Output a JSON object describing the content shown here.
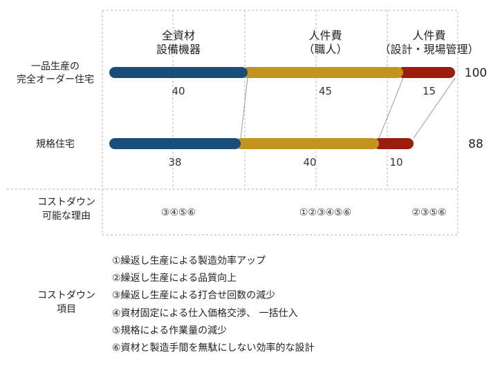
{
  "chart_data": {
    "type": "bar",
    "orientation": "horizontal",
    "stacked": true,
    "colors": {
      "materials": "#194e7a",
      "labor": "#c39320",
      "design": "#9b1d0e"
    },
    "series": [
      {
        "name": "全資材 設備機器",
        "name_lines": [
          "全資材",
          "設備機器"
        ],
        "color": "#194e7a"
      },
      {
        "name": "人件費 （職人）",
        "name_lines": [
          "人件費",
          "（職人）"
        ],
        "color": "#c39320"
      },
      {
        "name": "人件費 （設計・現場管理）",
        "name_lines": [
          "人件費",
          "（設計・現場管理）"
        ],
        "color": "#9b1d0e"
      }
    ],
    "rows": [
      {
        "label_lines": [
          "一品生産の",
          "完全オーダー住宅"
        ],
        "values": [
          40,
          45,
          15
        ],
        "total": "100"
      },
      {
        "label_lines": [
          "規格住宅"
        ],
        "values": [
          38,
          40,
          10
        ],
        "total": "88"
      }
    ],
    "xlim": [
      0,
      100
    ],
    "reason_row": {
      "label_lines": [
        "コストダウン",
        "可能な理由"
      ],
      "values": [
        "③④⑤⑥",
        "①②③④⑤⑥",
        "②③⑤⑥"
      ]
    }
  },
  "legend": {
    "title_lines": [
      "コストダウン",
      "項目"
    ],
    "items": [
      "①繰返し生産による製造効率アップ",
      "②繰返し生産による品質向上",
      "③繰返し生産による打合せ回数の減少",
      "④資材固定による仕入価格交渉、 一括仕入",
      "⑤規格による作業量の減少",
      "⑥資材と製造手間を無駄にしない効率的な設計"
    ]
  }
}
